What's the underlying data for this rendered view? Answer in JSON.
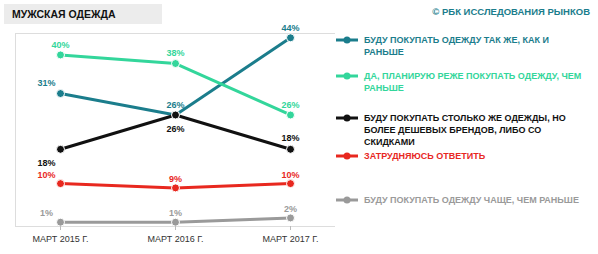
{
  "chart_data": {
    "type": "line",
    "title": "МУЖСКАЯ ОДЕЖДА",
    "source": "© РБК ИССЛЕДОВАНИЯ РЫНКОВ",
    "categories": [
      "МАРТ 2015 Г.",
      "МАРТ 2016 Г.",
      "МАРТ 2017 Г."
    ],
    "series": [
      {
        "name": "БУДУ ПОКУПАТЬ ОДЕЖДУ ТАК ЖЕ, КАК И РАНЬШЕ",
        "color": "#1b7d8c",
        "values": [
          31,
          26,
          44
        ],
        "value_labels": [
          "31%",
          "26%",
          "44%"
        ]
      },
      {
        "name": "ДА, ПЛАНИРУЮ РЕЖЕ ПОКУПАТЬ ОДЕЖДУ, ЧЕМ РАНЬШЕ",
        "color": "#33d69b",
        "values": [
          40,
          38,
          26
        ],
        "value_labels": [
          "40%",
          "38%",
          "26%"
        ]
      },
      {
        "name": "БУДУ ПОКУПАТЬ СТОЛЬКО ЖЕ ОДЕЖДЫ, НО БОЛЕЕ ДЕШЕВЫХ БРЕНДОВ, ЛИБО СО СКИДКАМИ",
        "color": "#111111",
        "values": [
          18,
          26,
          18
        ],
        "value_labels": [
          "18%",
          "26%",
          "18%"
        ]
      },
      {
        "name": "ЗАТРУДНЯЮСЬ ОТВЕТИТЬ",
        "color": "#e8281f",
        "values": [
          10,
          9,
          10
        ],
        "value_labels": [
          "10%",
          "9%",
          "10%"
        ]
      },
      {
        "name": "БУДУ ПОКУПАТЬ ОДЕЖДУ ЧАЩЕ, ЧЕМ РАНЬШЕ",
        "color": "#9a9a9a",
        "values": [
          1,
          1,
          2
        ],
        "value_labels": [
          "1%",
          "1%",
          "2%"
        ]
      }
    ],
    "ylim": [
      0,
      45
    ],
    "tick_labels": "x",
    "marker": "circle",
    "data_labels": true,
    "legend": "right"
  }
}
